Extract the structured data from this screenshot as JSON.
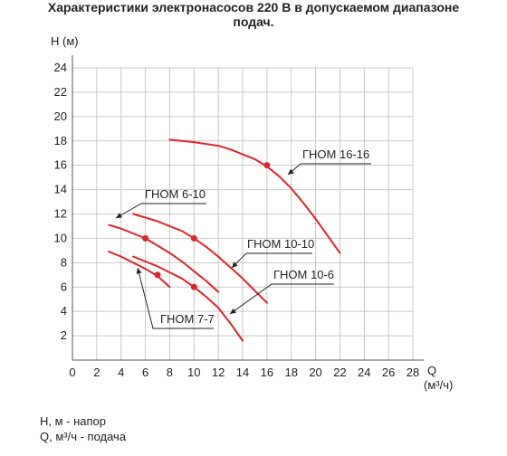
{
  "title_line1": "Характеристики электронасосов 220 В в допускаемом диапазоне",
  "title_line2": "подач.",
  "legend_lines": [
    "H, м - напор",
    "Q, м³/ч - подача"
  ],
  "chart_data": {
    "type": "line",
    "ylabel": "H (м)",
    "xlabel_main": "Q",
    "xlabel_unit": "(м³/ч)",
    "xlim": [
      0,
      28
    ],
    "ylim": [
      0,
      24
    ],
    "xticks": [
      0,
      2,
      4,
      6,
      8,
      10,
      12,
      14,
      16,
      18,
      20,
      22,
      24,
      26,
      28
    ],
    "yticks": [
      2,
      4,
      6,
      8,
      10,
      12,
      14,
      16,
      18,
      20,
      22,
      24
    ],
    "grid": true,
    "curve_color": "#e0242b",
    "series": [
      {
        "name": "ГНОМ 6-10",
        "x": [
          3,
          4,
          5,
          6,
          7,
          8,
          9,
          10,
          11,
          12
        ],
        "y": [
          11.1,
          10.8,
          10.4,
          10.0,
          9.4,
          8.8,
          8.1,
          7.3,
          6.5,
          5.6
        ],
        "marker": [
          6,
          10
        ]
      },
      {
        "name": "ГНОМ 7-7",
        "x": [
          3,
          4,
          5,
          6,
          7,
          8
        ],
        "y": [
          8.9,
          8.5,
          8.0,
          7.5,
          6.9,
          6.0
        ],
        "marker": [
          7,
          7
        ]
      },
      {
        "name": "ГНОМ 10-10",
        "x": [
          5,
          6,
          7,
          8,
          9,
          10,
          11,
          12,
          13,
          14,
          15,
          16
        ],
        "y": [
          12.0,
          11.7,
          11.4,
          11.0,
          10.6,
          10.0,
          9.3,
          8.5,
          7.6,
          6.7,
          5.7,
          4.7
        ],
        "marker": [
          10,
          10
        ]
      },
      {
        "name": "ГНОМ 10-6",
        "x": [
          5,
          6,
          7,
          8,
          9,
          10,
          11,
          12,
          13,
          14
        ],
        "y": [
          8.5,
          8.1,
          7.7,
          7.2,
          6.7,
          6.0,
          5.2,
          4.3,
          3.0,
          1.6
        ],
        "marker": [
          10,
          6
        ]
      },
      {
        "name": "ГНОМ 16-16",
        "x": [
          8,
          10,
          12,
          13,
          14,
          15,
          16,
          17,
          18,
          19,
          20,
          21,
          22
        ],
        "y": [
          18.1,
          17.9,
          17.6,
          17.3,
          16.9,
          16.5,
          15.9,
          15.1,
          14.1,
          12.9,
          11.6,
          10.2,
          8.8
        ],
        "marker": [
          16,
          16
        ]
      }
    ],
    "annotations": [
      {
        "text": "ГНОМ 6-10",
        "series": "ГНОМ 6-10"
      },
      {
        "text": "ГНОМ 7-7",
        "series": "ГНОМ 7-7"
      },
      {
        "text": "ГНОМ 10-10",
        "series": "ГНОМ 10-10"
      },
      {
        "text": "ГНОМ 10-6",
        "series": "ГНОМ 10-6"
      },
      {
        "text": "ГНОМ 16-16",
        "series": "ГНОМ 16-16"
      }
    ]
  }
}
